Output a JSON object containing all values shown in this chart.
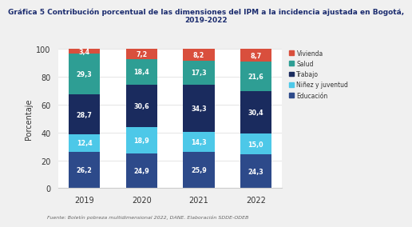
{
  "title_line1": "Gráfica 5 Contribución porcentual de las dimensiones del IPM a la incidencia ajustada en Bogotá,",
  "title_line2": "2019-2022",
  "years": [
    "2019",
    "2020",
    "2021",
    "2022"
  ],
  "categories": [
    "Educación",
    "Niñez y juventud",
    "Trabajo",
    "Salud",
    "Vivienda"
  ],
  "values": {
    "Educación": [
      26.2,
      24.9,
      25.9,
      24.3
    ],
    "Niñez y juventud": [
      12.4,
      18.9,
      14.3,
      15.0
    ],
    "Trabajo": [
      28.7,
      30.6,
      34.3,
      30.4
    ],
    "Salud": [
      29.3,
      18.4,
      17.3,
      21.6
    ],
    "Vivienda": [
      3.4,
      7.2,
      8.2,
      8.7
    ]
  },
  "colors": {
    "Educación": "#2d4a8a",
    "Niñez y juventud": "#4dc8e8",
    "Trabajo": "#1a2b5e",
    "Salud": "#2e9e94",
    "Vivienda": "#d94f3d"
  },
  "ylabel": "Porcentaje",
  "ylim": [
    0,
    100
  ],
  "yticks": [
    0,
    20,
    40,
    60,
    80,
    100
  ],
  "footnote": "Fuente: Boletín pobreza multidimensional 2022, DANE. Elaboración SDDE-ODEB",
  "page_background": "#f0f0f0",
  "plot_background": "#ffffff",
  "bar_width": 0.55
}
